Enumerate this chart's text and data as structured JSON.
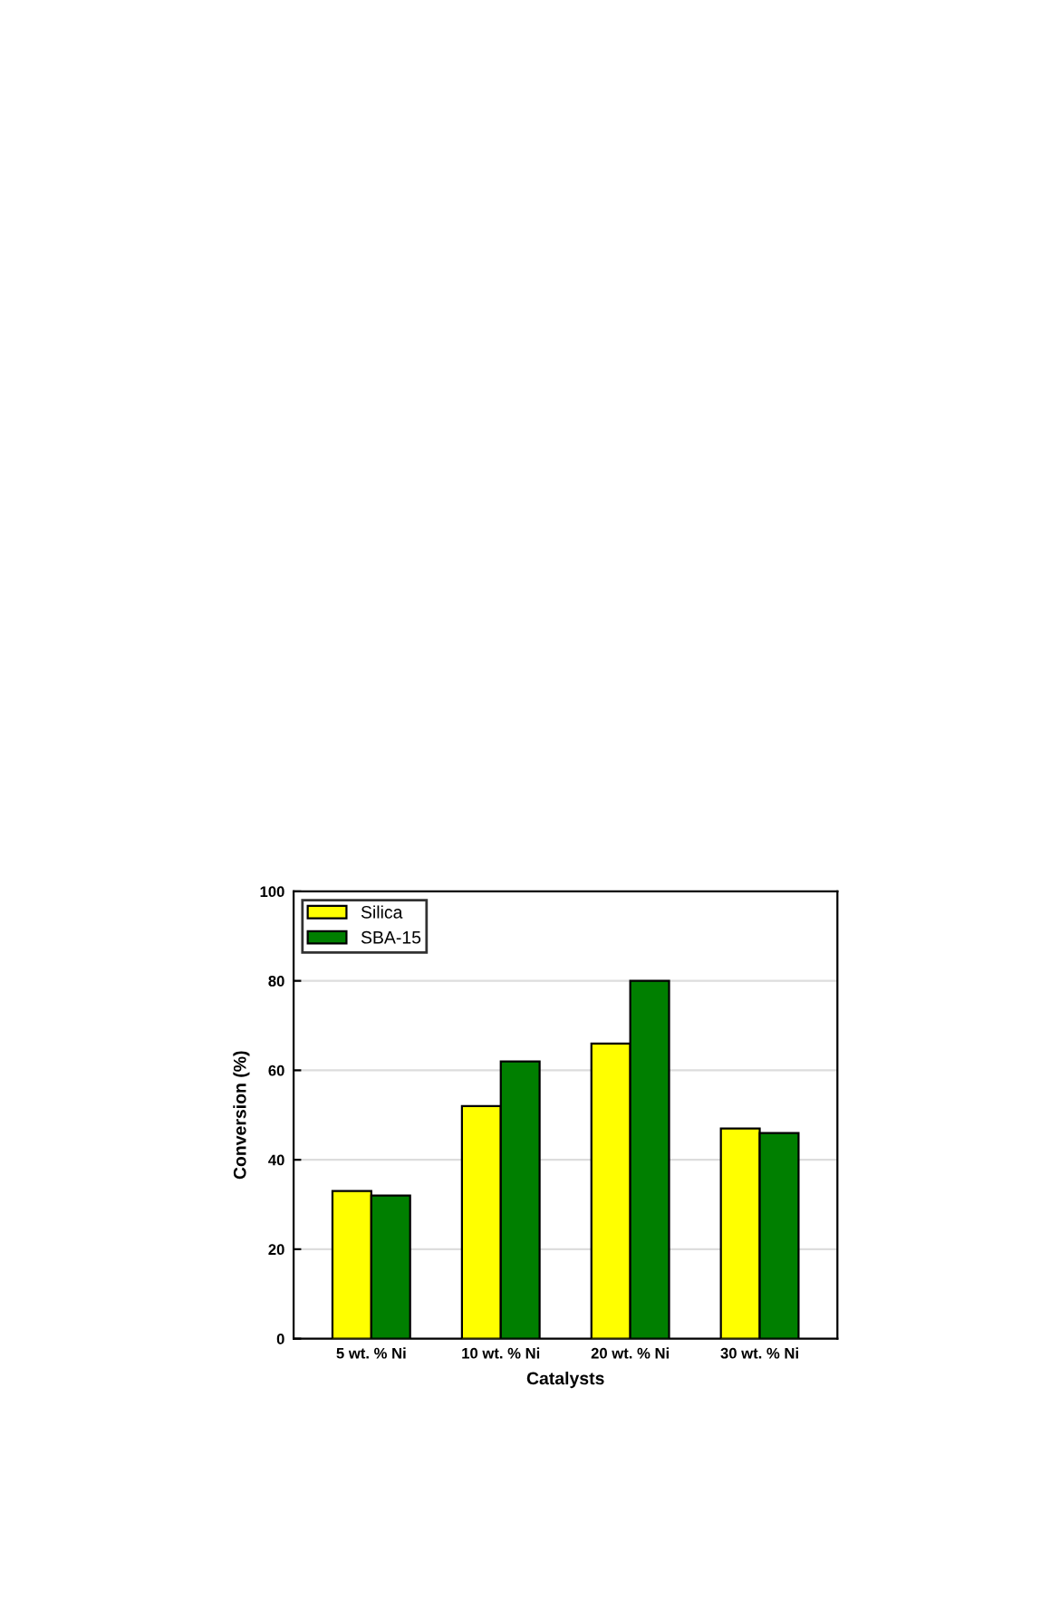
{
  "chart_data": {
    "type": "bar",
    "xlabel": "Catalysts",
    "ylabel": "Conversion (%)",
    "categories": [
      "5 wt. % Ni",
      "10 wt. % Ni",
      "20 wt. % Ni",
      "30 wt. % Ni"
    ],
    "series": [
      {
        "name": "Silica",
        "color": "#ffff00",
        "values": [
          33,
          52,
          66,
          47
        ]
      },
      {
        "name": "SBA-15",
        "color": "#007f00",
        "values": [
          32,
          62,
          80,
          46
        ]
      }
    ],
    "ylim": [
      0,
      100
    ],
    "yticks": [
      0,
      20,
      40,
      60,
      80,
      100
    ],
    "grid": "y",
    "legend": "top left"
  }
}
